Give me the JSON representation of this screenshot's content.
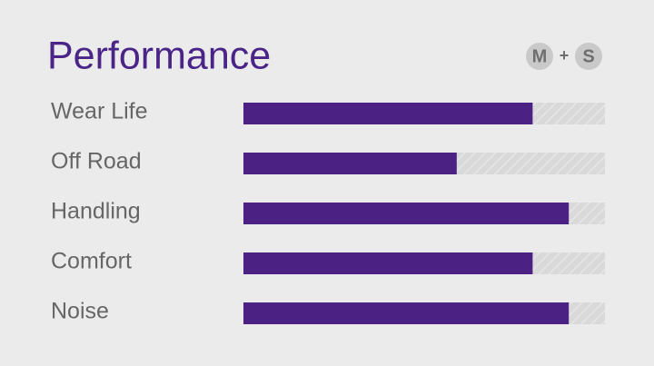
{
  "chart_data": {
    "type": "bar",
    "orientation": "horizontal",
    "title": "Performance",
    "badge": {
      "left": "M",
      "joiner": "+",
      "right": "S"
    },
    "categories": [
      "Wear Life",
      "Off Road",
      "Handling",
      "Comfort",
      "Noise"
    ],
    "values": [
      80,
      59,
      90,
      80,
      90
    ],
    "color": "#4b2283",
    "xlim": [
      0,
      100
    ]
  }
}
